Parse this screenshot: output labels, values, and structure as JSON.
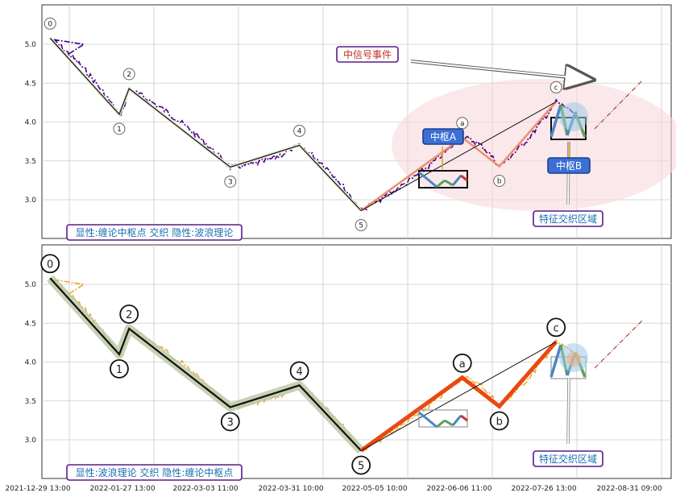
{
  "chart_data": [
    {
      "type": "line",
      "panel": "top",
      "ylim": [
        2.5,
        5.5
      ],
      "yticks": [
        "3.0",
        "3.5",
        "4.0",
        "4.5",
        "5.0"
      ],
      "grid": true,
      "caption": "显性:缠论中枢点 交织 隐性:波浪理论",
      "wave_points": [
        {
          "label": "0",
          "x": "2022-01-03",
          "y": 5.08
        },
        {
          "label": "1",
          "x": "2022-01-31",
          "y": 4.1
        },
        {
          "label": "2",
          "x": "2022-02-04",
          "y": 4.43
        },
        {
          "label": "3",
          "x": "2022-03-17",
          "y": 3.42
        },
        {
          "label": "4",
          "x": "2022-04-14",
          "y": 3.7
        },
        {
          "label": "5",
          "x": "2022-05-09",
          "y": 2.86
        },
        {
          "label": "a",
          "x": "2022-06-19",
          "y": 3.8
        },
        {
          "label": "b",
          "x": "2022-07-04",
          "y": 3.43
        },
        {
          "label": "c",
          "x": "2022-07-27",
          "y": 4.26
        }
      ],
      "annotations": [
        "中信号事件",
        "中枢A",
        "中枢B",
        "特征交织区域"
      ]
    },
    {
      "type": "line",
      "panel": "bottom",
      "ylim": [
        2.5,
        5.5
      ],
      "yticks": [
        "3.0",
        "3.5",
        "4.0",
        "4.5",
        "5.0"
      ],
      "grid": true,
      "caption": "显性:波浪理论 交织 隐性:缠论中枢点",
      "wave_points": [
        {
          "label": "0",
          "x": "2022-01-03",
          "y": 5.08
        },
        {
          "label": "1",
          "x": "2022-01-31",
          "y": 4.1
        },
        {
          "label": "2",
          "x": "2022-02-04",
          "y": 4.43
        },
        {
          "label": "3",
          "x": "2022-03-17",
          "y": 3.42
        },
        {
          "label": "4",
          "x": "2022-04-14",
          "y": 3.7
        },
        {
          "label": "5",
          "x": "2022-05-09",
          "y": 2.86
        },
        {
          "label": "a",
          "x": "2022-06-19",
          "y": 3.8
        },
        {
          "label": "b",
          "x": "2022-07-04",
          "y": 3.43
        },
        {
          "label": "c",
          "x": "2022-07-27",
          "y": 4.26
        }
      ],
      "annotations": [
        "特征交织区域"
      ]
    }
  ],
  "x_axis": {
    "tick_labels": [
      "2021-12-29 13:00",
      "2022-01-27 13:00",
      "2022-03-03 11:00",
      "2022-03-31 10:00",
      "2022-05-05 10:00",
      "2022-06-06 11:00",
      "2022-07-26 13:00",
      "2022-08-31 09:00"
    ]
  },
  "colors": {
    "price_top": "#4b0082",
    "price_bottom": "#e8a830",
    "wave_line": "#111111",
    "impulse_a": "#e84a10",
    "zone_ellipse": "#f5d6da",
    "label_box_border": "#5a1a8a",
    "label_text_blue": "#1a6fb5",
    "label_text_red": "#c0302a",
    "center_box": "#3b6fd4"
  }
}
